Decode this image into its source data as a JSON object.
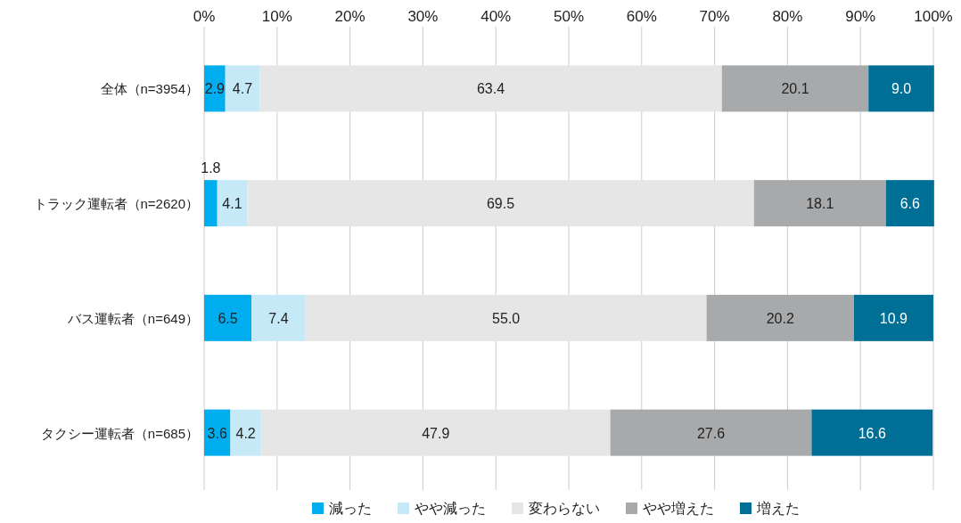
{
  "chart_data": {
    "type": "bar",
    "orientation": "horizontal",
    "stacked": true,
    "grid": "x",
    "legend": "bottom",
    "categories": [
      "全体（n=3954）",
      "トラック運転者（n=2620）",
      "バス運転者（n=649）",
      "タクシー運転者（n=685）"
    ],
    "xlim": [
      0,
      100
    ],
    "xticks": [
      {
        "value": 0,
        "label": "0%"
      },
      {
        "value": 10,
        "label": "10%"
      },
      {
        "value": 20,
        "label": "20%"
      },
      {
        "value": 30,
        "label": "30%"
      },
      {
        "value": 40,
        "label": "40%"
      },
      {
        "value": 50,
        "label": "50%"
      },
      {
        "value": 60,
        "label": "60%"
      },
      {
        "value": 70,
        "label": "70%"
      },
      {
        "value": 80,
        "label": "80%"
      },
      {
        "value": 90,
        "label": "90%"
      },
      {
        "value": 100,
        "label": "100%"
      }
    ],
    "series": [
      {
        "name": "減った",
        "color": "#00aeef",
        "values": [
          2.9,
          1.8,
          6.5,
          3.6
        ],
        "value_labels": [
          "2.9",
          "1.8",
          "6.5",
          "3.6"
        ]
      },
      {
        "name": "やや減った",
        "color": "#c6e9f8",
        "values": [
          4.7,
          4.1,
          7.4,
          4.2
        ],
        "value_labels": [
          "4.7",
          "4.1",
          "7.4",
          "4.2"
        ]
      },
      {
        "name": "変わらない",
        "color": "#e6e6e6",
        "values": [
          63.4,
          69.5,
          55.0,
          47.9
        ],
        "value_labels": [
          "63.4",
          "69.5",
          "55.0",
          "47.9"
        ]
      },
      {
        "name": "やや増えた",
        "color": "#a8a9ab",
        "values": [
          20.1,
          18.1,
          20.2,
          27.6
        ],
        "value_labels": [
          "20.1",
          "18.1",
          "20.2",
          "27.6"
        ]
      },
      {
        "name": "増えた",
        "color": "#006f96",
        "values": [
          9.0,
          6.6,
          10.9,
          16.6
        ],
        "value_labels": [
          "9.0",
          "6.6",
          "10.9",
          "16.6"
        ]
      }
    ]
  }
}
